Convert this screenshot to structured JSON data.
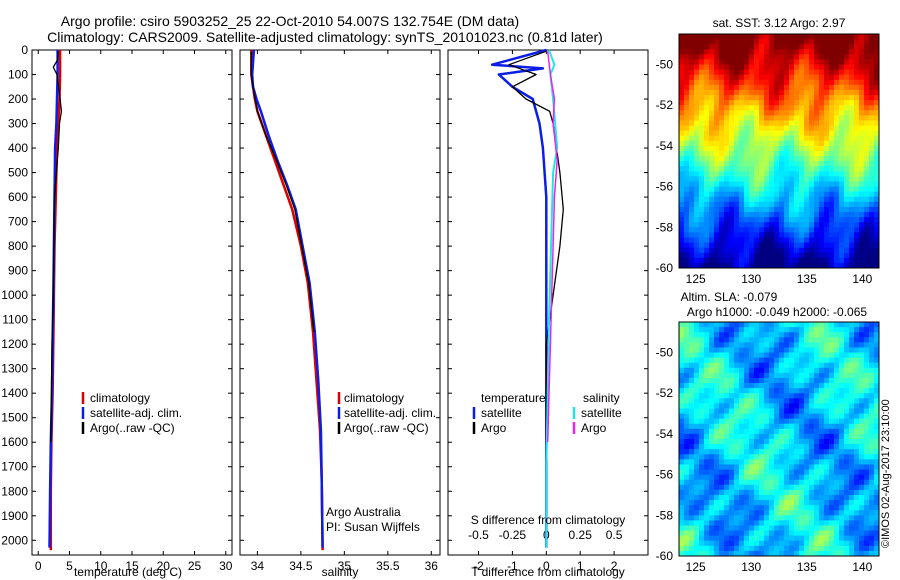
{
  "header": {
    "title_line1": "Argo profile: csiro 5903252_25 22-Oct-2010 54.007S 132.754E (DM data)",
    "title_line2": "Climatology: CARS2009. Satellite-adjusted climatology: synTS_20101023.nc (0.81d later)"
  },
  "colors": {
    "climatology": "#dd0000",
    "satellite": "#0a1ee6",
    "argo": "#000000",
    "salinity_satellite": "#22e6e6",
    "salinity_argo": "#ee22ee"
  },
  "labels": {
    "temp_legend": [
      "climatology",
      "satellite-adj. clim.",
      "Argo(..raw -QC)"
    ],
    "sal_legend": [
      "climatology",
      "satellite-adj. clim.",
      "Argo(..raw -QC)"
    ],
    "credit_line1": "Argo Australia",
    "credit_line2": "PI: Susan Wijffels",
    "diff_legend_temp_title": "temperature",
    "diff_legend_sal_title": "salinity",
    "diff_legend_sat": "satellite",
    "diff_legend_argo": "Argo",
    "s_diff_label": "S difference from climatology",
    "sst_title": "sat. SST: 3.12  Argo: 2.97",
    "sla_title1": "Altim. SLA: -0.079",
    "sla_title2": "Argo h1000: -0.049 h2000: -0.065",
    "watermark": "©IMOS 02-Aug-2017 23:10:00"
  },
  "chart_data": [
    {
      "type": "line",
      "title": "",
      "xlabel": "temperature (deg C)",
      "ylabel": "",
      "xlim": [
        -1,
        31
      ],
      "ylim": [
        2060,
        0
      ],
      "xticks": [
        0,
        5,
        10,
        15,
        20,
        25,
        30
      ],
      "yticks": [
        0,
        100,
        200,
        300,
        400,
        500,
        600,
        700,
        800,
        900,
        1000,
        1100,
        1200,
        1300,
        1400,
        1500,
        1600,
        1700,
        1800,
        1900,
        2000
      ],
      "series": [
        {
          "name": "climatology",
          "x": [
            3.5,
            3.5,
            3.4,
            3.2,
            3.0,
            2.8,
            2.6,
            2.5,
            2.4,
            2.3,
            2.1,
            2.0,
            2.0
          ],
          "y": [
            0,
            100,
            200,
            300,
            400,
            600,
            800,
            1000,
            1200,
            1400,
            1600,
            1800,
            2040
          ]
        },
        {
          "name": "satellite-adj. clim.",
          "x": [
            3.1,
            3.1,
            3.0,
            2.9,
            2.7,
            2.6,
            2.5,
            2.4,
            2.3,
            2.2,
            2.0,
            1.9,
            1.8
          ],
          "y": [
            0,
            100,
            200,
            300,
            400,
            600,
            800,
            1000,
            1200,
            1400,
            1600,
            1800,
            2030
          ]
        },
        {
          "name": "Argo(..raw -QC)",
          "x": [
            3.2,
            3.1,
            2.4,
            3.0,
            3.3,
            3.5,
            3.7,
            3.4,
            3.2,
            2.9,
            2.6,
            2.5,
            2.4,
            2.2,
            2.1,
            2.0
          ],
          "y": [
            5,
            40,
            70,
            100,
            160,
            200,
            250,
            300,
            400,
            500,
            600,
            800,
            1000,
            1200,
            1400,
            1600
          ]
        }
      ]
    },
    {
      "type": "line",
      "title": "",
      "xlabel": "salinity",
      "ylabel": "",
      "xlim": [
        33.8,
        36.1
      ],
      "ylim": [
        2060,
        0
      ],
      "xticks": [
        34,
        34.5,
        35,
        35.5,
        36
      ],
      "series": [
        {
          "name": "climatology",
          "x": [
            33.93,
            33.93,
            33.95,
            33.97,
            34.0,
            34.1,
            34.2,
            34.3,
            34.4,
            34.5,
            34.58,
            34.64,
            34.68,
            34.72,
            34.74,
            34.75
          ],
          "y": [
            0,
            100,
            150,
            200,
            250,
            350,
            450,
            550,
            650,
            800,
            950,
            1150,
            1350,
            1550,
            1750,
            2040
          ]
        },
        {
          "name": "satellite-adj. clim.",
          "x": [
            33.96,
            33.94,
            33.95,
            33.99,
            34.04,
            34.13,
            34.23,
            34.34,
            34.44,
            34.52,
            34.6,
            34.66,
            34.7,
            34.73,
            34.74,
            34.75
          ],
          "y": [
            0,
            100,
            150,
            200,
            250,
            350,
            450,
            550,
            650,
            800,
            950,
            1150,
            1350,
            1550,
            1750,
            2030
          ]
        },
        {
          "name": "Argo(..raw -QC)",
          "x": [
            33.93,
            33.93,
            33.95,
            34.0,
            34.1,
            34.22,
            34.33,
            34.43,
            34.51,
            34.59,
            34.65
          ],
          "y": [
            5,
            100,
            150,
            250,
            350,
            450,
            550,
            650,
            800,
            950,
            1150
          ]
        }
      ]
    },
    {
      "type": "line",
      "title": "",
      "xlabel": "T difference from climatology",
      "ylabel": "",
      "xlim": [
        -2.9,
        3.0
      ],
      "ylim": [
        2060,
        0
      ],
      "xticks": [
        -2,
        -1,
        0,
        1,
        2
      ],
      "secondary_x_label": "S difference from climatology",
      "secondary_xticks": [
        -0.5,
        -0.25,
        0,
        0.25,
        0.5
      ],
      "series": [
        {
          "name": "temperature satellite",
          "x": [
            0.0,
            -1.6,
            -0.1,
            -1.4,
            -1.0,
            -0.4,
            -0.2,
            -0.1,
            0.0,
            0.0,
            0.0,
            0.0,
            0.0
          ],
          "y": [
            0,
            60,
            75,
            100,
            150,
            200,
            300,
            400,
            600,
            900,
            1200,
            1600,
            2030
          ]
        },
        {
          "name": "temperature Argo",
          "x": [
            0.0,
            -1.1,
            -0.3,
            -1.0,
            -0.6,
            0.1,
            0.2,
            0.3,
            0.4,
            0.5,
            0.4,
            0.3,
            0.2,
            0.0,
            0.0
          ],
          "y": [
            5,
            60,
            100,
            150,
            200,
            250,
            300,
            400,
            500,
            650,
            800,
            900,
            1000,
            1200,
            1600
          ]
        },
        {
          "name": "salinity satellite",
          "x": [
            0.02,
            0.06,
            0.03,
            0.05,
            0.08,
            0.05,
            0.04,
            0.03,
            0.02,
            0.01,
            0.0,
            0.0
          ],
          "y": [
            0,
            60,
            100,
            200,
            400,
            500,
            700,
            900,
            1100,
            1400,
            1700,
            2030
          ]
        },
        {
          "name": "salinity Argo",
          "x": [
            0.01,
            0.03,
            0.06,
            0.05,
            0.08,
            0.06,
            0.05,
            0.04,
            0.03,
            0.02,
            0.01
          ],
          "y": [
            5,
            100,
            200,
            300,
            450,
            600,
            800,
            1000,
            1200,
            1400,
            1600
          ]
        }
      ]
    },
    {
      "type": "heatmap",
      "title": "sat. SST: 3.12  Argo: 2.97",
      "xlim": [
        123.5,
        141.5
      ],
      "ylim": [
        -60,
        -48.5
      ],
      "xticks": [
        125,
        130,
        135,
        140
      ],
      "yticks": [
        -50,
        -52,
        -54,
        -56,
        -58,
        -60
      ],
      "marker": {
        "lon": 132.754,
        "lat": -54.007
      }
    },
    {
      "type": "heatmap",
      "title": "Altim. SLA: -0.079",
      "xlim": [
        123.5,
        141.5
      ],
      "ylim": [
        -60,
        -48.5
      ],
      "xticks": [
        125,
        130,
        135,
        140
      ],
      "yticks": [
        -50,
        -52,
        -54,
        -56,
        -58,
        -60
      ],
      "marker": {
        "lon": 132.754,
        "lat": -54.007
      }
    }
  ]
}
